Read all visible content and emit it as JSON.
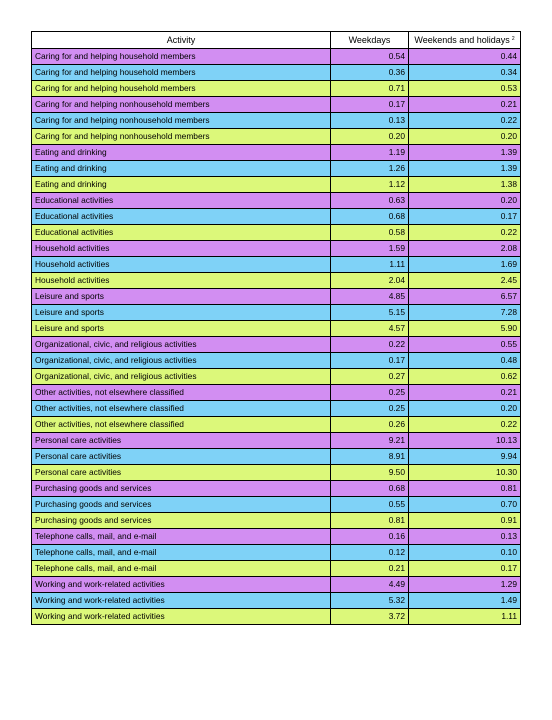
{
  "table": {
    "headers": {
      "activity": "Activity",
      "weekdays": "Weekdays",
      "weekends": "Weekends and holidays",
      "weekends_note": "2"
    },
    "colors": {
      "purple": "#d28ef2",
      "cyan": "#7fd2f7",
      "lime": "#dcf87a"
    },
    "rows": [
      {
        "activity": "Caring for and helping household members",
        "weekdays": "0.54",
        "weekends": "0.44",
        "color": "purple"
      },
      {
        "activity": "Caring for and helping household members",
        "weekdays": "0.36",
        "weekends": "0.34",
        "color": "cyan"
      },
      {
        "activity": "Caring for and helping household members",
        "weekdays": "0.71",
        "weekends": "0.53",
        "color": "lime"
      },
      {
        "activity": "Caring for and helping nonhousehold members",
        "weekdays": "0.17",
        "weekends": "0.21",
        "color": "purple"
      },
      {
        "activity": "Caring for and helping nonhousehold members",
        "weekdays": "0.13",
        "weekends": "0.22",
        "color": "cyan"
      },
      {
        "activity": "Caring for and helping nonhousehold members",
        "weekdays": "0.20",
        "weekends": "0.20",
        "color": "lime"
      },
      {
        "activity": "Eating and drinking",
        "weekdays": "1.19",
        "weekends": "1.39",
        "color": "purple"
      },
      {
        "activity": "Eating and drinking",
        "weekdays": "1.26",
        "weekends": "1.39",
        "color": "cyan"
      },
      {
        "activity": "Eating and drinking",
        "weekdays": "1.12",
        "weekends": "1.38",
        "color": "lime"
      },
      {
        "activity": "Educational activities",
        "weekdays": "0.63",
        "weekends": "0.20",
        "color": "purple"
      },
      {
        "activity": "Educational activities",
        "weekdays": "0.68",
        "weekends": "0.17",
        "color": "cyan"
      },
      {
        "activity": "Educational activities",
        "weekdays": "0.58",
        "weekends": "0.22",
        "color": "lime"
      },
      {
        "activity": "Household activities",
        "weekdays": "1.59",
        "weekends": "2.08",
        "color": "purple"
      },
      {
        "activity": "Household activities",
        "weekdays": "1.11",
        "weekends": "1.69",
        "color": "cyan"
      },
      {
        "activity": "Household activities",
        "weekdays": "2.04",
        "weekends": "2.45",
        "color": "lime"
      },
      {
        "activity": "Leisure and sports",
        "weekdays": "4.85",
        "weekends": "6.57",
        "color": "purple"
      },
      {
        "activity": "Leisure and sports",
        "weekdays": "5.15",
        "weekends": "7.28",
        "color": "cyan"
      },
      {
        "activity": "Leisure and sports",
        "weekdays": "4.57",
        "weekends": "5.90",
        "color": "lime"
      },
      {
        "activity": "Organizational, civic, and religious activities",
        "weekdays": "0.22",
        "weekends": "0.55",
        "color": "purple"
      },
      {
        "activity": "Organizational, civic, and religious activities",
        "weekdays": "0.17",
        "weekends": "0.48",
        "color": "cyan"
      },
      {
        "activity": "Organizational, civic, and religious activities",
        "weekdays": "0.27",
        "weekends": "0.62",
        "color": "lime"
      },
      {
        "activity": "Other activities, not elsewhere classified",
        "weekdays": "0.25",
        "weekends": "0.21",
        "color": "purple"
      },
      {
        "activity": "Other activities, not elsewhere classified",
        "weekdays": "0.25",
        "weekends": "0.20",
        "color": "cyan"
      },
      {
        "activity": "Other activities, not elsewhere classified",
        "weekdays": "0.26",
        "weekends": "0.22",
        "color": "lime"
      },
      {
        "activity": "Personal care activities",
        "weekdays": "9.21",
        "weekends": "10.13",
        "color": "purple"
      },
      {
        "activity": "Personal care activities",
        "weekdays": "8.91",
        "weekends": "9.94",
        "color": "cyan"
      },
      {
        "activity": "Personal care activities",
        "weekdays": "9.50",
        "weekends": "10.30",
        "color": "lime"
      },
      {
        "activity": "Purchasing goods and services",
        "weekdays": "0.68",
        "weekends": "0.81",
        "color": "purple"
      },
      {
        "activity": "Purchasing goods and services",
        "weekdays": "0.55",
        "weekends": "0.70",
        "color": "cyan"
      },
      {
        "activity": "Purchasing goods and services",
        "weekdays": "0.81",
        "weekends": "0.91",
        "color": "lime"
      },
      {
        "activity": "Telephone calls, mail, and e-mail",
        "weekdays": "0.16",
        "weekends": "0.13",
        "color": "purple"
      },
      {
        "activity": "Telephone calls, mail, and e-mail",
        "weekdays": "0.12",
        "weekends": "0.10",
        "color": "cyan"
      },
      {
        "activity": "Telephone calls, mail, and e-mail",
        "weekdays": "0.21",
        "weekends": "0.17",
        "color": "lime"
      },
      {
        "activity": "Working and work-related activities",
        "weekdays": "4.49",
        "weekends": "1.29",
        "color": "purple"
      },
      {
        "activity": "Working and work-related activities",
        "weekdays": "5.32",
        "weekends": "1.49",
        "color": "cyan"
      },
      {
        "activity": "Working and work-related activities",
        "weekdays": "3.72",
        "weekends": "1.11",
        "color": "lime"
      }
    ]
  }
}
